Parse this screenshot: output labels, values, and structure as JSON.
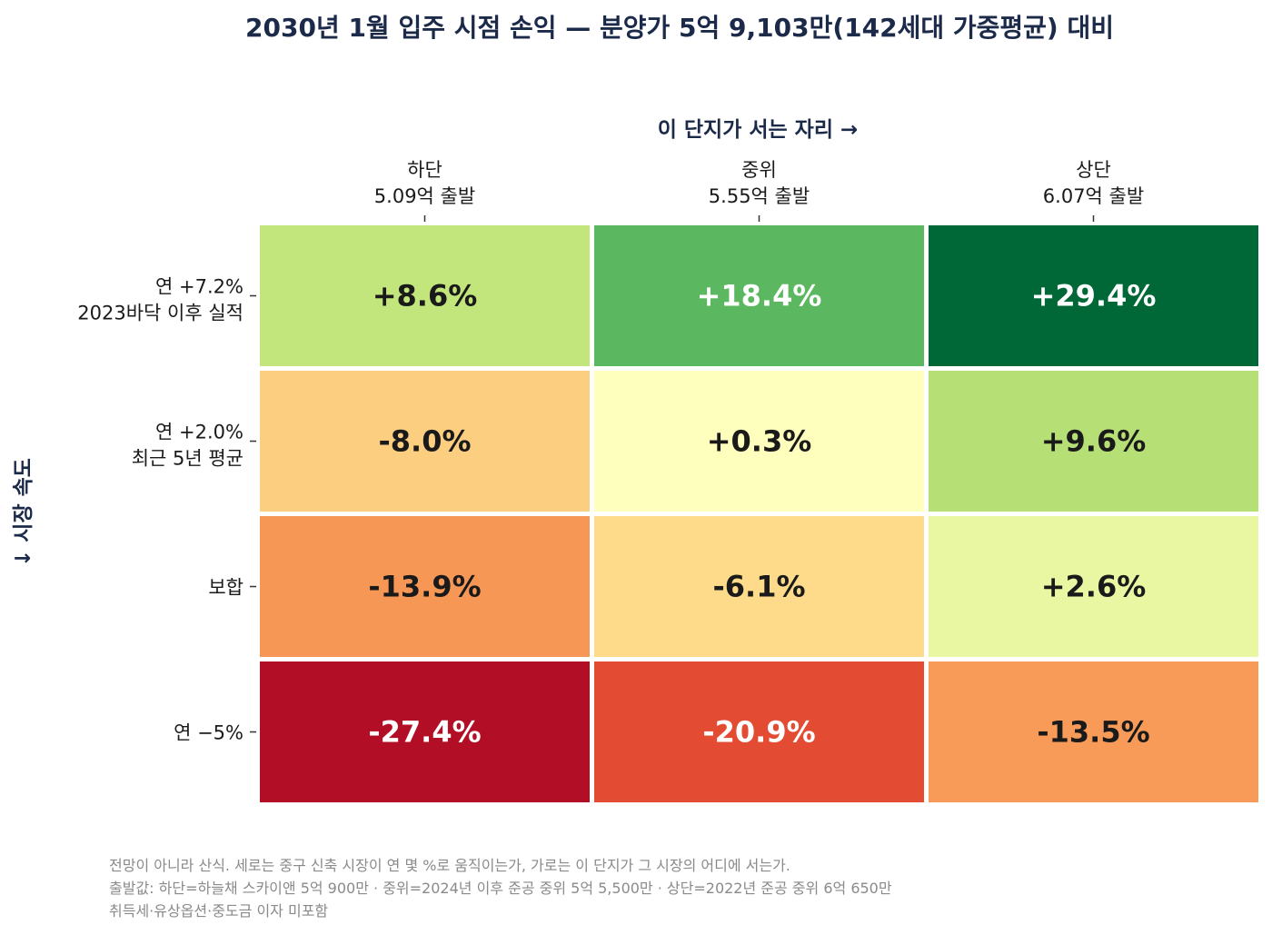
{
  "chart_data": {
    "type": "heatmap",
    "title": "2030년 1월 입주 시점 손익 — 분양가 5억 9,103만(142세대 가중평균) 대비",
    "xlabel": "이 단지가 서는 자리 →",
    "ylabel": "↓ 시장 속도",
    "columns": [
      {
        "name": "하단",
        "sub": "5.09억 출발"
      },
      {
        "name": "중위",
        "sub": "5.55억 출발"
      },
      {
        "name": "상단",
        "sub": "6.07억 출발"
      }
    ],
    "rows": [
      {
        "name": "연 +7.2%",
        "sub": "2023바닥 이후 실적"
      },
      {
        "name": "연 +2.0%",
        "sub": "최근 5년 평균"
      },
      {
        "name": "보합",
        "sub": ""
      },
      {
        "name": "연 −5%",
        "sub": ""
      }
    ],
    "values": [
      [
        8.6,
        18.4,
        29.4
      ],
      [
        -8.0,
        0.3,
        9.6
      ],
      [
        -13.9,
        -6.1,
        2.6
      ],
      [
        -27.4,
        -20.9,
        -13.5
      ]
    ],
    "labels": [
      [
        "+8.6%",
        "+18.4%",
        "+29.4%"
      ],
      [
        "-8.0%",
        "+0.3%",
        "+9.6%"
      ],
      [
        "-13.9%",
        "-6.1%",
        "+2.6%"
      ],
      [
        "-27.4%",
        "-20.9%",
        "-13.5%"
      ]
    ],
    "colormap": "RdYlGn",
    "value_range": [
      -30,
      30
    ],
    "cell_colors": [
      [
        "#c2e67b",
        "#5cb860",
        "#006837"
      ],
      [
        "#fcce80",
        "#fefebd",
        "#b6e076"
      ],
      [
        "#f79756",
        "#fddb8a",
        "#e9f6a2"
      ],
      [
        "#b20f27",
        "#e44b33",
        "#f89b58"
      ]
    ],
    "label_colors": [
      [
        "#1a1a1a",
        "#ffffff",
        "#ffffff"
      ],
      [
        "#1a1a1a",
        "#1a1a1a",
        "#1a1a1a"
      ],
      [
        "#1a1a1a",
        "#1a1a1a",
        "#1a1a1a"
      ],
      [
        "#ffffff",
        "#ffffff",
        "#1a1a1a"
      ]
    ]
  },
  "footnotes": [
    "전망이 아니라 산식. 세로는 중구 신축 시장이 연 몇 %로 움직이는가, 가로는 이 단지가 그 시장의 어디에 서는가.",
    "출발값: 하단=하늘채 스카이앤 5억 900만 · 중위=2024년 이후 준공 중위 5억 5,500만 · 상단=2022년 준공 중위 6억 650만",
    "취득세·유상옵션·중도금 이자 미포함"
  ]
}
